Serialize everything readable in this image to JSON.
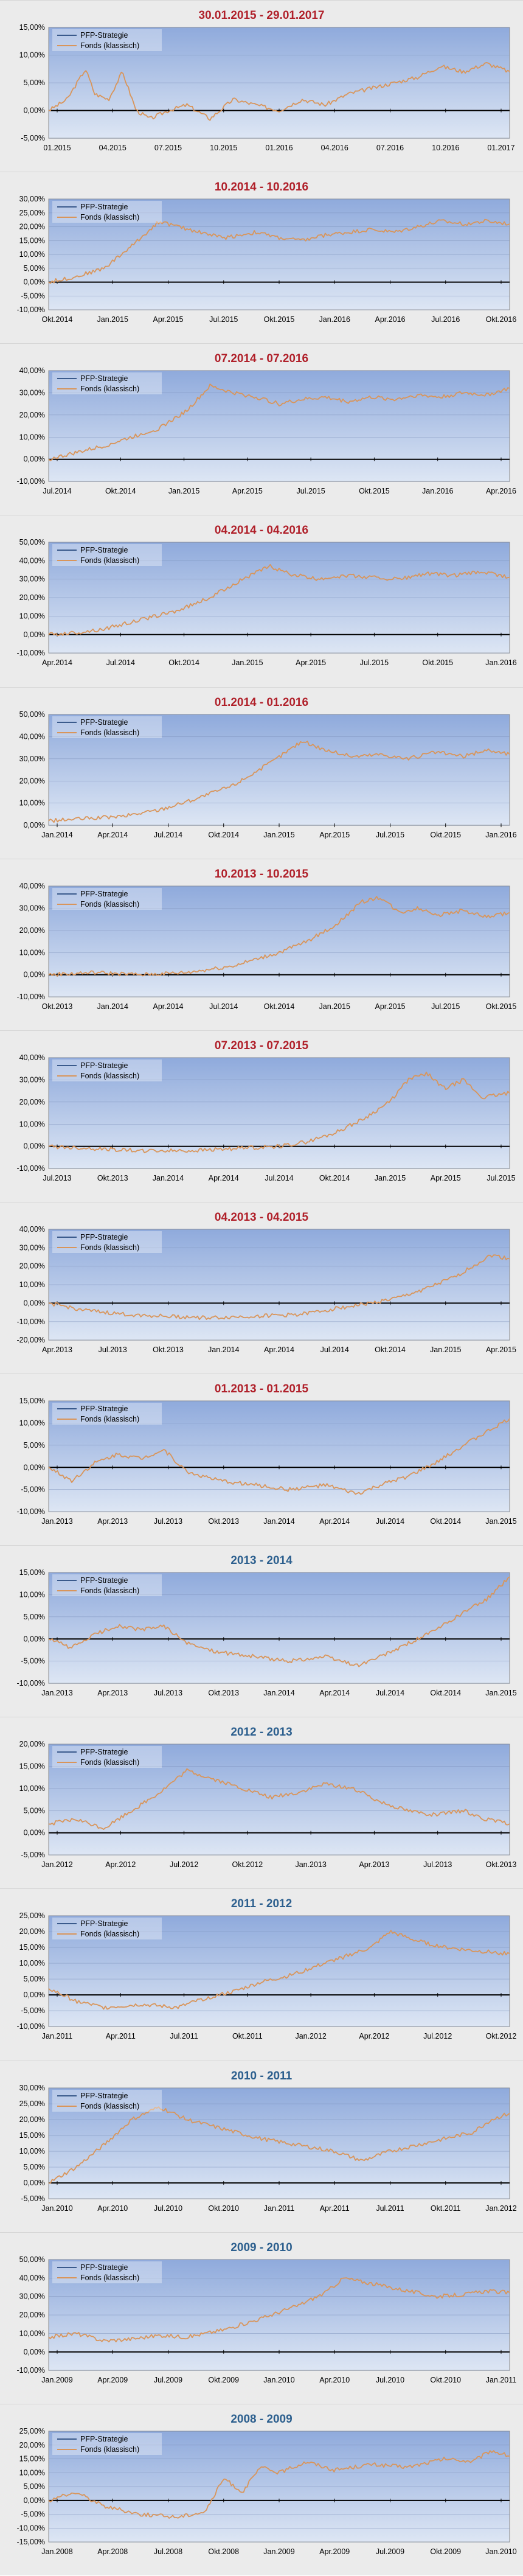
{
  "legend": {
    "pfp_label": "PFP-Strategie",
    "fonds_label": "Fonds (klassisch)"
  },
  "colors": {
    "title_red": "#b0202a",
    "title_blue": "#2c5f8e",
    "fonds_line": "#d9955a",
    "pfp_line": "#3a5a8c",
    "plot_top": "#8faadc",
    "plot_bottom": "#dde6f4"
  },
  "chart_data": [
    {
      "type": "line",
      "title": "30.01.2015 - 29.01.2017",
      "title_color": "red",
      "xlabels": [
        "01.2015",
        "04.2015",
        "07.2015",
        "10.2015",
        "01.2016",
        "04.2016",
        "07.2016",
        "10.2016",
        "01.2017"
      ],
      "yticks": [
        "-5,00%",
        "0,00%",
        "5,00%",
        "10,00%",
        "15,00%"
      ],
      "ylim": [
        -5,
        15
      ],
      "grid": true,
      "legend_position": "top-left",
      "series": [
        {
          "name": "Fonds (klassisch)",
          "x": [
            0,
            0.04,
            0.08,
            0.1,
            0.13,
            0.16,
            0.19,
            0.22,
            0.26,
            0.3,
            0.35,
            0.4,
            0.45,
            0.5,
            0.55,
            0.6,
            0.65,
            0.7,
            0.75,
            0.8,
            0.85,
            0.9,
            0.95,
            1
          ],
          "y": [
            0,
            2,
            7.5,
            3,
            2,
            7,
            0,
            -1.5,
            0,
            1,
            -1.5,
            2,
            1,
            0,
            2,
            1,
            3,
            4,
            5,
            6,
            8,
            7,
            8.5,
            7
          ]
        }
      ]
    },
    {
      "type": "line",
      "title": "10.2014 - 10.2016",
      "title_color": "red",
      "xlabels": [
        "Okt.2014",
        "Jan.2015",
        "Apr.2015",
        "Jul.2015",
        "Okt.2015",
        "Jan.2016",
        "Apr.2016",
        "Jul.2016",
        "Okt.2016"
      ],
      "yticks": [
        "-10,00%",
        "-5,00%",
        "0,00%",
        "5,00%",
        "10,00%",
        "15,00%",
        "20,00%",
        "25,00%",
        "30,00%"
      ],
      "ylim": [
        -10,
        30
      ],
      "grid": true,
      "legend_position": "top-left",
      "series": [
        {
          "name": "Fonds (klassisch)",
          "x": [
            0,
            0.06,
            0.12,
            0.18,
            0.24,
            0.28,
            0.33,
            0.38,
            0.45,
            0.5,
            0.55,
            0.6,
            0.65,
            0.7,
            0.75,
            0.8,
            0.85,
            0.9,
            0.95,
            1
          ],
          "y": [
            0,
            2,
            5,
            13,
            22,
            20,
            18,
            16,
            18,
            16,
            15,
            17,
            18,
            19,
            18,
            20,
            22,
            21,
            22,
            21
          ]
        }
      ]
    },
    {
      "type": "line",
      "title": "07.2014 - 07.2016",
      "title_color": "red",
      "xlabels": [
        "Jul.2014",
        "Okt.2014",
        "Jan.2015",
        "Apr.2015",
        "Jul.2015",
        "Okt.2015",
        "Jan.2016",
        "Apr.2016"
      ],
      "yticks": [
        "-10,00%",
        "0,00%",
        "10,00%",
        "20,00%",
        "30,00%",
        "40,00%"
      ],
      "ylim": [
        -10,
        40
      ],
      "grid": true,
      "legend_position": "top-left",
      "series": [
        {
          "name": "Fonds (klassisch)",
          "x": [
            0,
            0.06,
            0.12,
            0.18,
            0.24,
            0.3,
            0.35,
            0.4,
            0.45,
            0.5,
            0.55,
            0.6,
            0.65,
            0.7,
            0.75,
            0.8,
            0.85,
            0.9,
            0.95,
            1
          ],
          "y": [
            0,
            3,
            6,
            10,
            14,
            22,
            33,
            30,
            28,
            25,
            27,
            28,
            26,
            28,
            27,
            29,
            28,
            30,
            29,
            32
          ]
        }
      ]
    },
    {
      "type": "line",
      "title": "04.2014 - 04.2016",
      "title_color": "red",
      "xlabels": [
        "Apr.2014",
        "Jul.2014",
        "Okt.2014",
        "Jan.2015",
        "Apr.2015",
        "Jul.2015",
        "Okt.2015",
        "Jan.2016"
      ],
      "yticks": [
        "-10,00%",
        "0,00%",
        "10,00%",
        "20,00%",
        "30,00%",
        "40,00%",
        "50,00%"
      ],
      "ylim": [
        -10,
        50
      ],
      "grid": true,
      "legend_position": "top-left",
      "series": [
        {
          "name": "Fonds (klassisch)",
          "x": [
            0,
            0.06,
            0.12,
            0.2,
            0.28,
            0.35,
            0.42,
            0.48,
            0.52,
            0.58,
            0.64,
            0.7,
            0.76,
            0.82,
            0.88,
            0.94,
            1
          ],
          "y": [
            0,
            1,
            3,
            8,
            13,
            20,
            30,
            37,
            33,
            30,
            32,
            31,
            30,
            33,
            32,
            34,
            31
          ]
        }
      ]
    },
    {
      "type": "line",
      "title": "01.2014 - 01.2016",
      "title_color": "red",
      "xlabels": [
        "Jan.2014",
        "Apr.2014",
        "Jul.2014",
        "Okt.2014",
        "Jan.2015",
        "Apr.2015",
        "Jul.2015",
        "Okt.2015",
        "Jan.2016"
      ],
      "yticks": [
        "0,00%",
        "10,00%",
        "20,00%",
        "30,00%",
        "40,00%",
        "50,00%"
      ],
      "ylim": [
        0,
        50
      ],
      "grid": true,
      "legend_position": "top-left",
      "series": [
        {
          "name": "Fonds (klassisch)",
          "x": [
            0,
            0.08,
            0.16,
            0.24,
            0.32,
            0.4,
            0.48,
            0.55,
            0.6,
            0.66,
            0.72,
            0.78,
            0.84,
            0.9,
            0.95,
            1
          ],
          "y": [
            2,
            3,
            4,
            7,
            12,
            18,
            28,
            38,
            34,
            31,
            32,
            30,
            33,
            31,
            34,
            32
          ]
        }
      ]
    },
    {
      "type": "line",
      "title": "10.2013 - 10.2015",
      "title_color": "red",
      "xlabels": [
        "Okt.2013",
        "Jan.2014",
        "Apr.2014",
        "Jul.2014",
        "Okt.2014",
        "Jan.2015",
        "Apr.2015",
        "Jul.2015",
        "Okt.2015"
      ],
      "yticks": [
        "-10,00%",
        "0,00%",
        "10,00%",
        "20,00%",
        "30,00%",
        "40,00%"
      ],
      "ylim": [
        -10,
        40
      ],
      "grid": true,
      "legend_position": "top-left",
      "series": [
        {
          "name": "Fonds (klassisch)",
          "x": [
            0,
            0.1,
            0.2,
            0.3,
            0.4,
            0.5,
            0.56,
            0.62,
            0.68,
            0.72,
            0.76,
            0.8,
            0.85,
            0.9,
            0.95,
            1
          ],
          "y": [
            0,
            1,
            0,
            1,
            4,
            10,
            15,
            22,
            33,
            35,
            28,
            30,
            27,
            29,
            26,
            28
          ]
        }
      ]
    },
    {
      "type": "line",
      "title": "07.2013 - 07.2015",
      "title_color": "red",
      "xlabels": [
        "Jul.2013",
        "Okt.2013",
        "Jan.2014",
        "Apr.2014",
        "Jul.2014",
        "Okt.2014",
        "Jan.2015",
        "Apr.2015",
        "Jul.2015"
      ],
      "yticks": [
        "-10,00%",
        "0,00%",
        "10,00%",
        "20,00%",
        "30,00%",
        "40,00%"
      ],
      "ylim": [
        -10,
        40
      ],
      "grid": true,
      "legend_position": "top-left",
      "series": [
        {
          "name": "Fonds (klassisch)",
          "x": [
            0,
            0.1,
            0.2,
            0.3,
            0.4,
            0.5,
            0.56,
            0.62,
            0.68,
            0.74,
            0.78,
            0.82,
            0.86,
            0.9,
            0.94,
            1
          ],
          "y": [
            0,
            -1,
            -2,
            -2,
            -1,
            0,
            2,
            6,
            12,
            20,
            30,
            33,
            26,
            30,
            22,
            24
          ]
        }
      ]
    },
    {
      "type": "line",
      "title": "04.2013 - 04.2015",
      "title_color": "red",
      "xlabels": [
        "Apr.2013",
        "Jul.2013",
        "Okt.2013",
        "Jan.2014",
        "Apr.2014",
        "Jul.2014",
        "Okt.2014",
        "Jan.2015",
        "Apr.2015"
      ],
      "yticks": [
        "-20,00%",
        "-10,00%",
        "0,00%",
        "10,00%",
        "20,00%",
        "30,00%",
        "40,00%"
      ],
      "ylim": [
        -20,
        40
      ],
      "grid": true,
      "legend_position": "top-left",
      "series": [
        {
          "name": "Fonds (klassisch)",
          "x": [
            0,
            0.08,
            0.16,
            0.25,
            0.35,
            0.45,
            0.55,
            0.62,
            0.7,
            0.76,
            0.82,
            0.88,
            0.92,
            0.96,
            1
          ],
          "y": [
            0,
            -4,
            -6,
            -7,
            -8,
            -7,
            -6,
            -3,
            0,
            3,
            8,
            14,
            20,
            26,
            24
          ]
        }
      ]
    },
    {
      "type": "line",
      "title": "01.2013 - 01.2015",
      "title_color": "red",
      "xlabels": [
        "Jan.2013",
        "Apr.2013",
        "Jul.2013",
        "Okt.2013",
        "Jan.2014",
        "Apr.2014",
        "Jul.2014",
        "Okt.2014",
        "Jan.2015"
      ],
      "yticks": [
        "-10,00%",
        "-5,00%",
        "0,00%",
        "5,00%",
        "10,00%",
        "15,00%"
      ],
      "ylim": [
        -10,
        15
      ],
      "grid": true,
      "legend_position": "top-left",
      "series": [
        {
          "name": "Fonds (klassisch)",
          "x": [
            0,
            0.05,
            0.1,
            0.15,
            0.2,
            0.25,
            0.3,
            0.37,
            0.45,
            0.52,
            0.6,
            0.67,
            0.72,
            0.78,
            0.84,
            0.9,
            0.95,
            1
          ],
          "y": [
            0,
            -3,
            1,
            3,
            2,
            4,
            -1,
            -3,
            -4,
            -5,
            -4,
            -6,
            -4,
            -2,
            1,
            5,
            8,
            11
          ]
        }
      ]
    },
    {
      "type": "line",
      "title": "2013 - 2014",
      "title_color": "blue",
      "xlabels": [
        "Jan.2013",
        "Apr.2013",
        "Jul.2013",
        "Okt.2013",
        "Jan.2014",
        "Apr.2014",
        "Jul.2014",
        "Okt.2014",
        "Jan.2015"
      ],
      "yticks": [
        "-10,00%",
        "-5,00%",
        "0,00%",
        "5,00%",
        "10,00%",
        "15,00%"
      ],
      "ylim": [
        -10,
        15
      ],
      "grid": true,
      "legend_position": "top-left",
      "series": [
        {
          "name": "Fonds (klassisch)",
          "x": [
            0,
            0.05,
            0.1,
            0.15,
            0.2,
            0.25,
            0.3,
            0.37,
            0.45,
            0.52,
            0.6,
            0.67,
            0.72,
            0.78,
            0.84,
            0.9,
            0.95,
            1
          ],
          "y": [
            0,
            -2,
            1,
            3,
            2,
            3,
            -1,
            -3,
            -4,
            -5,
            -4,
            -6,
            -4,
            -1,
            2,
            6,
            9,
            14
          ]
        }
      ]
    },
    {
      "type": "line",
      "title": "2012 - 2013",
      "title_color": "blue",
      "xlabels": [
        "Jan.2012",
        "Apr.2012",
        "Jul.2012",
        "Okt.2012",
        "Jan.2013",
        "Apr.2013",
        "Jul.2013",
        "Okt.2013"
      ],
      "yticks": [
        "-5,00%",
        "0,00%",
        "5,00%",
        "10,00%",
        "15,00%",
        "20,00%"
      ],
      "ylim": [
        -5,
        20
      ],
      "grid": true,
      "legend_position": "top-left",
      "series": [
        {
          "name": "Fonds (klassisch)",
          "x": [
            0,
            0.06,
            0.12,
            0.18,
            0.24,
            0.3,
            0.36,
            0.42,
            0.48,
            0.54,
            0.6,
            0.66,
            0.72,
            0.78,
            0.84,
            0.9,
            0.95,
            1
          ],
          "y": [
            2,
            3,
            1,
            5,
            9,
            14,
            12,
            10,
            8,
            9,
            11,
            10,
            7,
            5,
            4,
            5,
            3,
            2
          ]
        }
      ]
    },
    {
      "type": "line",
      "title": "2011 - 2012",
      "title_color": "blue",
      "xlabels": [
        "Jan.2011",
        "Apr.2011",
        "Jul.2011",
        "Okt.2011",
        "Jan.2012",
        "Apr.2012",
        "Jul.2012",
        "Okt.2012"
      ],
      "yticks": [
        "-10,00%",
        "-5,00%",
        "0,00%",
        "5,00%",
        "10,00%",
        "15,00%",
        "20,00%",
        "25,00%"
      ],
      "ylim": [
        -10,
        25
      ],
      "grid": true,
      "legend_position": "top-left",
      "series": [
        {
          "name": "Fonds (klassisch)",
          "x": [
            0,
            0.06,
            0.12,
            0.2,
            0.28,
            0.34,
            0.4,
            0.46,
            0.52,
            0.58,
            0.64,
            0.7,
            0.74,
            0.8,
            0.86,
            0.92,
            1
          ],
          "y": [
            2,
            -2,
            -4,
            -3,
            -4,
            -1,
            1,
            4,
            6,
            9,
            12,
            15,
            20,
            17,
            15,
            14,
            13
          ]
        }
      ]
    },
    {
      "type": "line",
      "title": "2010 - 2011",
      "title_color": "blue",
      "xlabels": [
        "Jan.2010",
        "Apr.2010",
        "Jul.2010",
        "Okt.2010",
        "Jan.2011",
        "Apr.2011",
        "Jul.2011",
        "Okt.2011",
        "Jan.2012"
      ],
      "yticks": [
        "-5,00%",
        "0,00%",
        "5,00%",
        "10,00%",
        "15,00%",
        "20,00%",
        "25,00%",
        "30,00%"
      ],
      "ylim": [
        -5,
        30
      ],
      "grid": true,
      "legend_position": "top-left",
      "series": [
        {
          "name": "Fonds (klassisch)",
          "x": [
            0,
            0.06,
            0.12,
            0.18,
            0.24,
            0.3,
            0.38,
            0.46,
            0.54,
            0.62,
            0.68,
            0.74,
            0.8,
            0.86,
            0.92,
            0.96,
            1
          ],
          "y": [
            0,
            5,
            12,
            20,
            24,
            20,
            17,
            14,
            12,
            10,
            7,
            10,
            12,
            14,
            16,
            20,
            22
          ]
        }
      ]
    },
    {
      "type": "line",
      "title": "2009 - 2010",
      "title_color": "blue",
      "xlabels": [
        "Jan.2009",
        "Apr.2009",
        "Jul.2009",
        "Okt.2009",
        "Jan.2010",
        "Apr.2010",
        "Jul.2010",
        "Okt.2010",
        "Jan.2011"
      ],
      "yticks": [
        "-10,00%",
        "0,00%",
        "10,00%",
        "20,00%",
        "30,00%",
        "40,00%",
        "50,00%"
      ],
      "ylim": [
        -10,
        50
      ],
      "grid": true,
      "legend_position": "top-left",
      "series": [
        {
          "name": "Fonds (klassisch)",
          "x": [
            0,
            0.06,
            0.12,
            0.18,
            0.24,
            0.3,
            0.38,
            0.46,
            0.54,
            0.6,
            0.64,
            0.68,
            0.72,
            0.78,
            0.84,
            0.9,
            0.95,
            1
          ],
          "y": [
            8,
            10,
            6,
            7,
            9,
            8,
            12,
            18,
            25,
            32,
            40,
            38,
            36,
            33,
            30,
            31,
            33,
            32
          ]
        }
      ]
    },
    {
      "type": "line",
      "title": "2008 - 2009",
      "title_color": "blue",
      "xlabels": [
        "Jan.2008",
        "Apr.2008",
        "Jul.2008",
        "Okt.2008",
        "Jan.2009",
        "Apr.2009",
        "Jul.2009",
        "Okt.2009",
        "Jan.2010"
      ],
      "yticks": [
        "-15,00%",
        "-10,00%",
        "-5,00%",
        "0,00%",
        "5,00%",
        "10,00%",
        "15,00%",
        "20,00%",
        "25,00%"
      ],
      "ylim": [
        -15,
        25
      ],
      "grid": true,
      "legend_position": "top-left",
      "series": [
        {
          "name": "Fonds (klassisch)",
          "x": [
            0,
            0.06,
            0.12,
            0.2,
            0.28,
            0.34,
            0.38,
            0.42,
            0.46,
            0.5,
            0.56,
            0.62,
            0.7,
            0.78,
            0.86,
            0.92,
            0.96,
            1
          ],
          "y": [
            0,
            3,
            -2,
            -5,
            -6,
            -4,
            8,
            3,
            12,
            10,
            14,
            11,
            13,
            12,
            15,
            14,
            18,
            16
          ]
        }
      ]
    }
  ]
}
